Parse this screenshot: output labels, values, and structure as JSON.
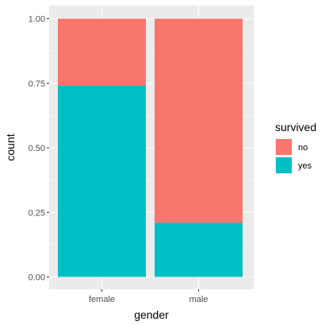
{
  "chart_data": {
    "type": "bar",
    "stacked": true,
    "xlabel": "gender",
    "ylabel": "count",
    "categories": [
      "female",
      "male"
    ],
    "series": [
      {
        "name": "no",
        "values": [
          0.26,
          0.79
        ],
        "color": "#F8766D"
      },
      {
        "name": "yes",
        "values": [
          0.74,
          0.21
        ],
        "color": "#00BFC4"
      }
    ],
    "ylim": [
      0,
      1
    ],
    "yticks": [
      0.0,
      0.25,
      0.5,
      0.75,
      1.0
    ],
    "ytick_labels": [
      "0.00",
      "0.25",
      "0.50",
      "0.75",
      "1.00"
    ],
    "grid": true,
    "legend": {
      "title": "survived",
      "position": "right",
      "entries": [
        "no",
        "yes"
      ]
    },
    "colors": {
      "panel_background": "#EBEBEB",
      "grid_major": "#FFFFFF"
    }
  }
}
